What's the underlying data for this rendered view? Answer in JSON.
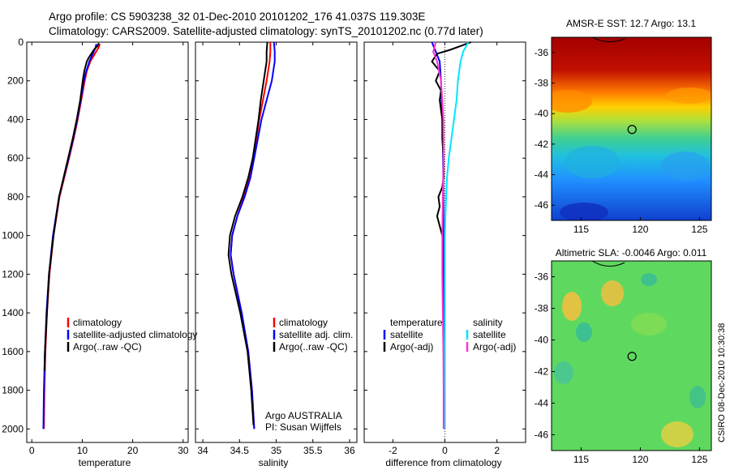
{
  "header": {
    "title_line1": "Argo profile: CS 5903238_32 01-Dec-2010 20101202_176 41.037S 119.303E",
    "title_line2": "Climatology: CARS2009. Satellite-adjusted climatology: synTS_20101202.nc (0.77d later)"
  },
  "side_label": "CSIRO 08-Dec-2010 10:30:38",
  "colors": {
    "climatology": "#ff0000",
    "satellite": "#0000ff",
    "argo": "#000000",
    "salinity_satellite": "#00e5ff",
    "salinity_argo": "#ff33cc"
  },
  "chart_data": [
    {
      "type": "line",
      "xlabel": "temperature",
      "xlim": [
        -1,
        31
      ],
      "xticks": [
        "0",
        "10",
        "20",
        "30"
      ],
      "xtick_values": [
        0,
        10,
        20,
        30
      ],
      "ylim": [
        0,
        2070
      ],
      "yreverse": true,
      "yticks": [
        "0",
        "200",
        "400",
        "600",
        "800",
        "1000",
        "1200",
        "1400",
        "1600",
        "1800",
        "2000"
      ],
      "ytick_values": [
        0,
        200,
        400,
        600,
        800,
        1000,
        1200,
        1400,
        1600,
        1800,
        2000
      ],
      "legend": [
        "climatology",
        "satellite-adjusted climatology",
        "Argo(..raw -QC)"
      ],
      "series": [
        {
          "name": "climatology",
          "color": "#ff0000",
          "y": [
            10,
            30,
            60,
            100,
            150,
            200,
            300,
            400,
            500,
            600,
            800,
            1000,
            1200,
            1400,
            1600,
            1800,
            2000
          ],
          "x": [
            13.5,
            13.2,
            12.5,
            11.6,
            10.9,
            10.5,
            9.8,
            9.1,
            8.3,
            7.4,
            5.5,
            4.3,
            3.5,
            3.0,
            2.7,
            2.5,
            2.4
          ]
        },
        {
          "name": "satellite-adjusted climatology",
          "color": "#0000ff",
          "y": [
            10,
            30,
            60,
            100,
            150,
            200,
            300,
            400,
            500,
            600,
            800,
            1000,
            1200,
            1400,
            1600,
            1800,
            2000
          ],
          "x": [
            12.8,
            12.6,
            12.1,
            11.4,
            10.8,
            10.3,
            9.7,
            9.0,
            8.2,
            7.3,
            5.4,
            4.2,
            3.4,
            2.9,
            2.6,
            2.4,
            2.3
          ]
        },
        {
          "name": "Argo(..raw -QC)",
          "color": "#000000",
          "y": [
            5,
            20,
            40,
            60,
            80,
            100,
            150,
            200,
            300,
            400,
            500,
            600,
            800,
            1000,
            1200,
            1400,
            1600,
            1700
          ],
          "x": [
            13.3,
            13.0,
            12.3,
            11.8,
            11.3,
            10.9,
            10.4,
            10.1,
            9.6,
            8.9,
            8.1,
            7.2,
            5.4,
            4.3,
            3.4,
            3.0,
            2.6,
            2.5
          ]
        }
      ]
    },
    {
      "type": "line",
      "xlabel": "salinity",
      "xlim": [
        33.9,
        36.1
      ],
      "xticks": [
        "34",
        "34.5",
        "35",
        "35.5",
        "36"
      ],
      "xtick_values": [
        34,
        34.5,
        35,
        35.5,
        36
      ],
      "ylim": [
        0,
        2070
      ],
      "yreverse": true,
      "legend": [
        "climatology",
        "satellite adj. clim.",
        "Argo(..raw -QC)"
      ],
      "annotation_line1": "Argo AUSTRALIA",
      "annotation_line2": "PI: Susan Wijffels",
      "series": [
        {
          "name": "climatology",
          "color": "#ff0000",
          "y": [
            0,
            50,
            100,
            200,
            300,
            400,
            500,
            600,
            700,
            800,
            900,
            1000,
            1100,
            1200,
            1400,
            1600,
            1800,
            2000
          ],
          "x": [
            34.92,
            34.92,
            34.91,
            34.87,
            34.82,
            34.77,
            34.73,
            34.69,
            34.64,
            34.56,
            34.47,
            34.4,
            34.38,
            34.42,
            34.53,
            34.62,
            34.67,
            34.7
          ]
        },
        {
          "name": "satellite adj. clim.",
          "color": "#0000ff",
          "y": [
            0,
            50,
            100,
            200,
            300,
            400,
            500,
            600,
            700,
            800,
            900,
            1000,
            1100,
            1200,
            1400,
            1600,
            1800,
            2000
          ],
          "x": [
            34.97,
            34.98,
            34.98,
            34.94,
            34.87,
            34.8,
            34.75,
            34.7,
            34.65,
            34.57,
            34.47,
            34.4,
            34.38,
            34.42,
            34.53,
            34.62,
            34.67,
            34.7
          ]
        },
        {
          "name": "Argo(..raw -QC)",
          "color": "#000000",
          "y": [
            0,
            50,
            100,
            200,
            300,
            400,
            500,
            600,
            700,
            800,
            900,
            1000,
            1100,
            1200,
            1400,
            1600,
            1800,
            1980
          ],
          "x": [
            34.88,
            34.87,
            34.87,
            34.83,
            34.79,
            34.76,
            34.72,
            34.68,
            34.62,
            34.54,
            34.44,
            34.37,
            34.35,
            34.39,
            34.51,
            34.61,
            34.66,
            34.69
          ]
        }
      ]
    },
    {
      "type": "line",
      "xlabel": "difference from climatology",
      "xlim": [
        -3.1,
        3.1
      ],
      "xticks": [
        "-2",
        "0",
        "2"
      ],
      "xtick_values": [
        -2,
        0,
        2
      ],
      "ylim": [
        0,
        2070
      ],
      "yreverse": true,
      "legend_header_left": "temperature",
      "legend_header_right": "salinity",
      "legend_left": [
        "satellite",
        "Argo(-adj)"
      ],
      "legend_right": [
        "satellite",
        "Argo(-adj)"
      ],
      "series": [
        {
          "name": "temperature satellite",
          "color": "#0000ff",
          "y": [
            0,
            100,
            200,
            400,
            600,
            800,
            1000,
            1200,
            1600,
            2000
          ],
          "x": [
            -0.5,
            -0.2,
            -0.15,
            -0.1,
            -0.07,
            -0.06,
            -0.05,
            -0.05,
            -0.04,
            -0.03
          ]
        },
        {
          "name": "temperature Argo(-adj)",
          "color": "#000000",
          "y": [
            0,
            20,
            40,
            60,
            100,
            150,
            200,
            250,
            300,
            400,
            500,
            600,
            700,
            750,
            800,
            850,
            900,
            950,
            1000
          ],
          "x": [
            1.0,
            0.6,
            0.2,
            -0.3,
            -0.5,
            -0.2,
            -0.35,
            -0.15,
            -0.2,
            -0.1,
            -0.1,
            -0.05,
            -0.05,
            -0.1,
            -0.25,
            -0.2,
            -0.3,
            -0.2,
            -0.1
          ]
        },
        {
          "name": "salinity satellite",
          "color": "#00e5ff",
          "y": [
            0,
            50,
            100,
            200,
            300,
            400,
            500,
            600,
            700,
            800,
            900,
            1000,
            1200,
            1600,
            2000
          ],
          "x": [
            0.9,
            0.7,
            0.6,
            0.5,
            0.45,
            0.35,
            0.25,
            0.15,
            0.08,
            0.05,
            0.02,
            0.0,
            0.0,
            0.0,
            0.0
          ]
        },
        {
          "name": "salinity Argo(-adj)",
          "color": "#ff33cc",
          "y": [
            0,
            50,
            100,
            200,
            300,
            400,
            600,
            800,
            1000,
            1200,
            1400,
            1600,
            1800,
            2000
          ],
          "x": [
            -0.35,
            -0.45,
            -0.3,
            -0.15,
            -0.1,
            -0.06,
            -0.05,
            -0.08,
            -0.1,
            -0.1,
            -0.08,
            -0.06,
            -0.05,
            -0.05
          ]
        }
      ]
    },
    {
      "type": "heatmap",
      "title": "AMSR-E SST: 12.7 Argo: 13.1",
      "xlim": [
        112.5,
        126
      ],
      "ylim": [
        -47,
        -35
      ],
      "xticks": [
        "115",
        "120",
        "125"
      ],
      "xtick_values": [
        115,
        120,
        125
      ],
      "yticks": [
        "-36",
        "-38",
        "-40",
        "-42",
        "-44",
        "-46"
      ],
      "ytick_values": [
        -36,
        -38,
        -40,
        -42,
        -44,
        -46
      ],
      "marker": {
        "lon": 119.3,
        "lat": -41.04
      }
    },
    {
      "type": "heatmap",
      "title": "Altimetric SLA: -0.0046 Argo: 0.011",
      "xlim": [
        112.5,
        126
      ],
      "ylim": [
        -47,
        -35
      ],
      "xticks": [
        "115",
        "120",
        "125"
      ],
      "xtick_values": [
        115,
        120,
        125
      ],
      "yticks": [
        "-36",
        "-38",
        "-40",
        "-42",
        "-44",
        "-46"
      ],
      "ytick_values": [
        -36,
        -38,
        -40,
        -42,
        -44,
        -46
      ],
      "marker": {
        "lon": 119.3,
        "lat": -41.04
      }
    }
  ]
}
